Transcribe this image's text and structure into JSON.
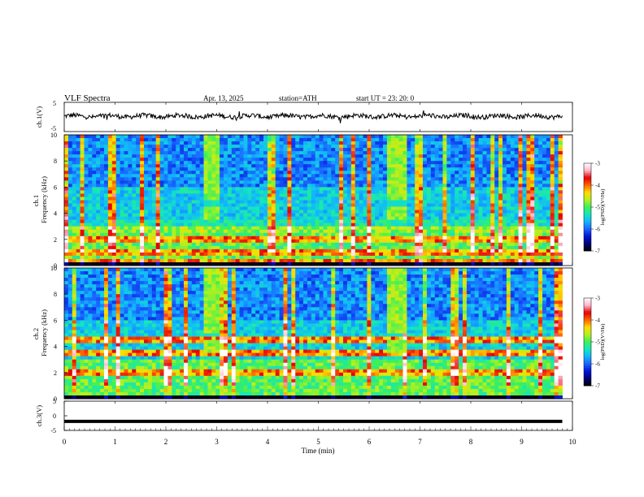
{
  "header": {
    "title": "VLF  Spectra",
    "date": "Apr. 13, 2025",
    "station": "station=ATH",
    "start": "start  UT  =   23: 20: 0"
  },
  "colors": {
    "colormap": [
      "#000000",
      "#00007a",
      "#0014d8",
      "#1a64ff",
      "#12b4ff",
      "#14e6be",
      "#3cf05a",
      "#b4f01e",
      "#ffdc00",
      "#ff6400",
      "#e60000",
      "#ffb4c8",
      "#ffffff"
    ],
    "trace": "#000000"
  },
  "chart_data": [
    {
      "id": "ch1-waveform",
      "type": "line",
      "ylabel": "ch.1(V)",
      "ylim": [
        -5,
        5
      ],
      "yticks": [
        5,
        -5
      ],
      "xlim": [
        0,
        10
      ]
    },
    {
      "id": "ch1-spectrogram",
      "type": "heatmap",
      "ylabel": "ch.1\nFrequency (kHz)",
      "ylim": [
        0,
        10
      ],
      "yticks": [
        0,
        2,
        4,
        6,
        8,
        10
      ],
      "xlim": [
        0,
        10
      ],
      "data_end_min": 9.8,
      "colorbar": {
        "label": "log(PSD)(V²/Hz)",
        "range": [
          -7,
          -3
        ],
        "ticks": [
          -3,
          -4,
          -5,
          -6,
          -7
        ]
      },
      "features": {
        "broadband_bursts_min": [
          [
            2.73,
            3.08
          ],
          [
            6.33,
            6.72
          ]
        ],
        "strong_lines_khz": [
          2.0,
          1.0,
          0.4
        ]
      }
    },
    {
      "id": "ch2-spectrogram",
      "type": "heatmap",
      "ylabel": "ch.2\nFrequency (kHz)",
      "ylim": [
        0,
        10
      ],
      "yticks": [
        0,
        2,
        4,
        6,
        8,
        10
      ],
      "xlim": [
        0,
        10
      ],
      "data_end_min": 9.8,
      "colorbar": {
        "label": "log(PSD)(V²/Hz)",
        "range": [
          -7,
          -3
        ],
        "ticks": [
          -3,
          -4,
          -5,
          -6,
          -7
        ]
      },
      "features": {
        "broadband_bursts_min": [
          [
            2.73,
            3.08
          ],
          [
            6.33,
            6.72
          ]
        ],
        "strong_lines_khz": [
          4.5,
          3.5,
          2.0
        ]
      }
    },
    {
      "id": "ch3-waveform",
      "type": "line",
      "ylabel": "ch.3(V)",
      "ylim": [
        -5,
        5
      ],
      "yticks": [
        5,
        0,
        -5
      ],
      "xlim": [
        0,
        10
      ],
      "level_v": -1.9
    }
  ],
  "xaxis": {
    "label": "Time  (min)",
    "ticks": [
      0,
      1,
      2,
      3,
      4,
      5,
      6,
      7,
      8,
      9,
      10
    ]
  }
}
